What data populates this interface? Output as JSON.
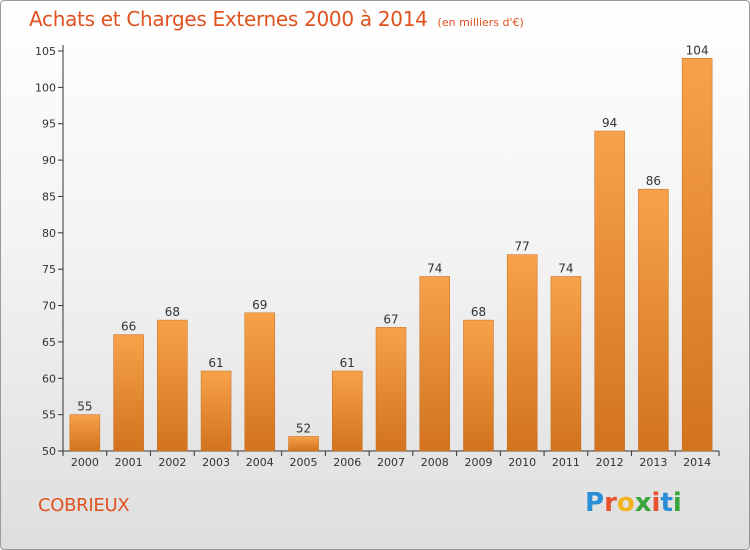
{
  "title": "Achats et Charges Externes 2000 à 2014",
  "subtitle": "(en milliers d'€)",
  "commune": "COBRIEUX",
  "logo": {
    "text": "Proxiti",
    "letter_colors": [
      "#2a8fd6",
      "#e8522f",
      "#f2b21b",
      "#3aa53a",
      "#e8522f",
      "#2a8fd6",
      "#3aa53a"
    ]
  },
  "colors": {
    "title": "#e0521f",
    "bar_top": "#f7a24a",
    "bar_bottom": "#d2731e",
    "bar_stroke": "#c46a1c"
  },
  "chart_data": {
    "type": "bar",
    "categories": [
      "2000",
      "2001",
      "2002",
      "2003",
      "2004",
      "2005",
      "2006",
      "2007",
      "2008",
      "2009",
      "2010",
      "2011",
      "2012",
      "2013",
      "2014"
    ],
    "values": [
      55,
      66,
      68,
      61,
      69,
      52,
      61,
      67,
      74,
      68,
      77,
      74,
      94,
      86,
      104
    ],
    "ylim": [
      50,
      105
    ],
    "yticks": [
      50,
      55,
      60,
      65,
      70,
      75,
      80,
      85,
      90,
      95,
      100,
      105
    ],
    "grid": false,
    "legend": "none"
  }
}
